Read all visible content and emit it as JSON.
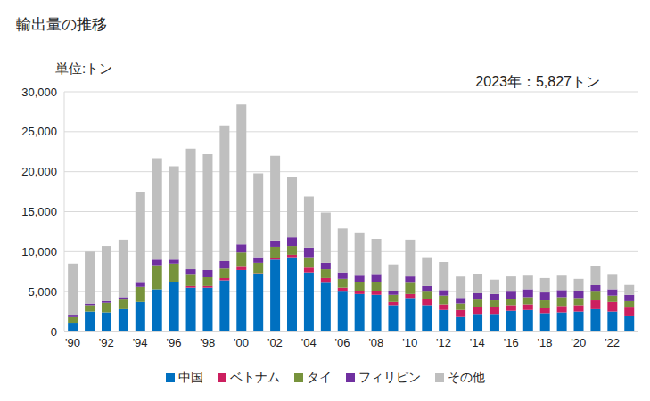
{
  "chart_data": {
    "type": "bar",
    "title": "輸出量の推移",
    "y_label": "単位:トン",
    "annotation": "2023年：5,827トン",
    "stacked": true,
    "grid": true,
    "legend": "bottom",
    "categories": [
      "'90",
      null,
      "'92",
      null,
      "'94",
      null,
      "'96",
      null,
      "'98",
      null,
      "'00",
      null,
      "'02",
      null,
      "'04",
      null,
      "'06",
      null,
      "'08",
      null,
      "'10",
      null,
      "'12",
      null,
      "'14",
      null,
      "'16",
      null,
      "'18",
      null,
      "'20",
      null,
      "'22",
      null
    ],
    "ylim": [
      0,
      30000
    ],
    "yticks": [
      0,
      {
        "value": 5000,
        "label": "5,000"
      },
      {
        "value": 10000,
        "label": "10,000"
      },
      {
        "value": 15000,
        "label": "15,000"
      },
      {
        "value": 20000,
        "label": "20,000"
      },
      {
        "value": 25000,
        "label": "25,000"
      },
      {
        "value": 30000,
        "label": "30,000"
      }
    ],
    "series": [
      {
        "name": "中国",
        "color": "#0070c0",
        "values": [
          1000,
          2500,
          2400,
          2800,
          3700,
          5300,
          6200,
          5500,
          5500,
          6400,
          7700,
          7200,
          9000,
          9300,
          7400,
          6100,
          5000,
          4700,
          4600,
          3300,
          4200,
          3300,
          2700,
          1800,
          2200,
          2200,
          2600,
          2700,
          2300,
          2400,
          2500,
          2800,
          2500,
          1900
        ]
      },
      {
        "name": "ベトナム",
        "color": "#cc1f5f",
        "values": [
          0,
          0,
          0,
          0,
          0,
          0,
          0,
          200,
          200,
          300,
          400,
          100,
          200,
          300,
          600,
          600,
          500,
          400,
          500,
          400,
          500,
          800,
          700,
          900,
          900,
          900,
          700,
          700,
          600,
          800,
          800,
          1100,
          1200,
          1100
        ]
      },
      {
        "name": "タイ",
        "color": "#77933c",
        "values": [
          800,
          800,
          1200,
          1200,
          1900,
          3000,
          2300,
          1400,
          1100,
          1200,
          1800,
          1300,
          1400,
          1100,
          1300,
          1100,
          1100,
          1100,
          1100,
          900,
          1400,
          900,
          1100,
          800,
          900,
          800,
          800,
          900,
          1000,
          1100,
          900,
          1100,
          800,
          800
        ]
      },
      {
        "name": "フィリピン",
        "color": "#7030a0",
        "values": [
          200,
          200,
          200,
          300,
          500,
          700,
          500,
          700,
          900,
          900,
          1000,
          700,
          800,
          1100,
          1200,
          800,
          800,
          800,
          900,
          500,
          800,
          700,
          700,
          700,
          800,
          800,
          900,
          1000,
          1000,
          900,
          900,
          800,
          800,
          800
        ]
      },
      {
        "name": "その他",
        "color": "#bfbfbf",
        "values": [
          6500,
          6500,
          6900,
          7200,
          11300,
          12700,
          11700,
          15100,
          14500,
          17000,
          17500,
          10500,
          10600,
          7500,
          6400,
          6300,
          5500,
          5400,
          4500,
          3300,
          4600,
          3600,
          3500,
          2700,
          2400,
          1800,
          1900,
          1700,
          1800,
          1800,
          1500,
          2400,
          1800,
          1227
        ]
      }
    ]
  }
}
